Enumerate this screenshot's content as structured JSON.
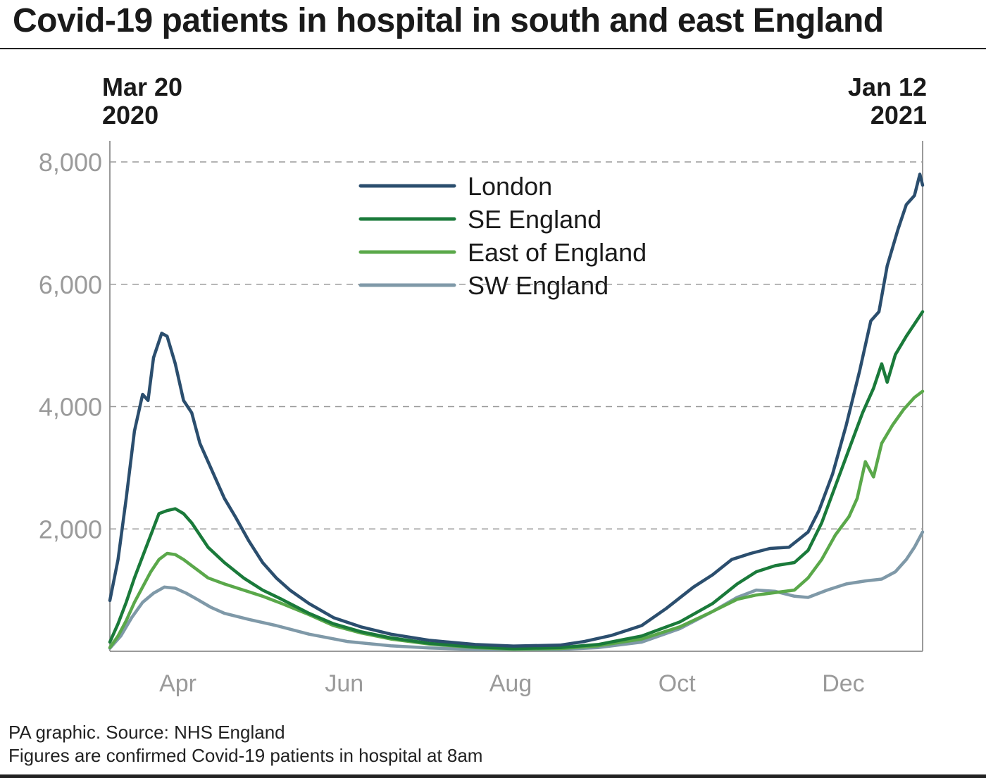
{
  "title": "Covid-19 patients in hospital in south and east England",
  "date_range": {
    "start_month_day": "Mar 20",
    "start_year": "2020",
    "end_month_day": "Jan 12",
    "end_year": "2021"
  },
  "footer": {
    "source": "PA graphic. Source: NHS England",
    "note": "Figures are confirmed Covid-19 patients in hospital at 8am"
  },
  "chart_data": {
    "type": "line",
    "x_range": [
      "2020-03-20",
      "2021-01-12"
    ],
    "ylim": [
      0,
      8000
    ],
    "yticks": [
      2000,
      4000,
      6000,
      8000
    ],
    "ytick_labels": [
      "2,000",
      "4,000",
      "6,000",
      "8,000"
    ],
    "xticks": [
      {
        "date": "2020-04-01",
        "label": "Apr"
      },
      {
        "date": "2020-06-01",
        "label": "Jun"
      },
      {
        "date": "2020-08-01",
        "label": "Aug"
      },
      {
        "date": "2020-10-01",
        "label": "Oct"
      },
      {
        "date": "2020-12-01",
        "label": "Dec"
      }
    ],
    "grid": "horizontal dashed",
    "legend_position": "top-center",
    "series": [
      {
        "name": "London",
        "color": "#2b4e6e",
        "points": [
          [
            "2020-03-20",
            830
          ],
          [
            "2020-03-23",
            1500
          ],
          [
            "2020-03-26",
            2500
          ],
          [
            "2020-03-29",
            3600
          ],
          [
            "2020-04-01",
            4200
          ],
          [
            "2020-04-03",
            4100
          ],
          [
            "2020-04-05",
            4800
          ],
          [
            "2020-04-08",
            5200
          ],
          [
            "2020-04-10",
            5150
          ],
          [
            "2020-04-13",
            4700
          ],
          [
            "2020-04-16",
            4100
          ],
          [
            "2020-04-19",
            3900
          ],
          [
            "2020-04-22",
            3400
          ],
          [
            "2020-04-25",
            3100
          ],
          [
            "2020-04-28",
            2800
          ],
          [
            "2020-05-01",
            2500
          ],
          [
            "2020-05-05",
            2200
          ],
          [
            "2020-05-10",
            1800
          ],
          [
            "2020-05-15",
            1450
          ],
          [
            "2020-05-20",
            1200
          ],
          [
            "2020-05-25",
            1000
          ],
          [
            "2020-06-01",
            780
          ],
          [
            "2020-06-10",
            550
          ],
          [
            "2020-06-20",
            400
          ],
          [
            "2020-07-01",
            280
          ],
          [
            "2020-07-15",
            180
          ],
          [
            "2020-08-01",
            110
          ],
          [
            "2020-08-15",
            85
          ],
          [
            "2020-09-01",
            100
          ],
          [
            "2020-09-10",
            160
          ],
          [
            "2020-09-20",
            260
          ],
          [
            "2020-10-01",
            420
          ],
          [
            "2020-10-10",
            700
          ],
          [
            "2020-10-20",
            1050
          ],
          [
            "2020-10-27",
            1250
          ],
          [
            "2020-11-03",
            1500
          ],
          [
            "2020-11-10",
            1600
          ],
          [
            "2020-11-17",
            1680
          ],
          [
            "2020-11-24",
            1700
          ],
          [
            "2020-12-01",
            1950
          ],
          [
            "2020-12-05",
            2300
          ],
          [
            "2020-12-10",
            2900
          ],
          [
            "2020-12-15",
            3700
          ],
          [
            "2020-12-20",
            4600
          ],
          [
            "2020-12-24",
            5400
          ],
          [
            "2020-12-27",
            5550
          ],
          [
            "2020-12-30",
            6300
          ],
          [
            "2021-01-03",
            6900
          ],
          [
            "2021-01-06",
            7300
          ],
          [
            "2021-01-09",
            7450
          ],
          [
            "2021-01-11",
            7800
          ],
          [
            "2021-01-12",
            7620
          ]
        ]
      },
      {
        "name": "SE England",
        "color": "#1a7a3a",
        "points": [
          [
            "2020-03-20",
            150
          ],
          [
            "2020-03-23",
            450
          ],
          [
            "2020-03-26",
            800
          ],
          [
            "2020-03-29",
            1200
          ],
          [
            "2020-04-01",
            1550
          ],
          [
            "2020-04-04",
            1900
          ],
          [
            "2020-04-07",
            2250
          ],
          [
            "2020-04-10",
            2300
          ],
          [
            "2020-04-13",
            2330
          ],
          [
            "2020-04-16",
            2250
          ],
          [
            "2020-04-19",
            2100
          ],
          [
            "2020-04-22",
            1900
          ],
          [
            "2020-04-25",
            1700
          ],
          [
            "2020-05-01",
            1450
          ],
          [
            "2020-05-08",
            1200
          ],
          [
            "2020-05-15",
            1000
          ],
          [
            "2020-05-22",
            850
          ],
          [
            "2020-06-01",
            620
          ],
          [
            "2020-06-10",
            450
          ],
          [
            "2020-06-20",
            320
          ],
          [
            "2020-07-01",
            220
          ],
          [
            "2020-07-15",
            130
          ],
          [
            "2020-08-01",
            70
          ],
          [
            "2020-08-15",
            45
          ],
          [
            "2020-09-01",
            60
          ],
          [
            "2020-09-15",
            110
          ],
          [
            "2020-10-01",
            250
          ],
          [
            "2020-10-15",
            480
          ],
          [
            "2020-10-27",
            780
          ],
          [
            "2020-11-05",
            1100
          ],
          [
            "2020-11-12",
            1300
          ],
          [
            "2020-11-19",
            1400
          ],
          [
            "2020-11-26",
            1450
          ],
          [
            "2020-12-01",
            1650
          ],
          [
            "2020-12-06",
            2100
          ],
          [
            "2020-12-11",
            2700
          ],
          [
            "2020-12-16",
            3300
          ],
          [
            "2020-12-21",
            3900
          ],
          [
            "2020-12-25",
            4300
          ],
          [
            "2020-12-28",
            4700
          ],
          [
            "2020-12-30",
            4400
          ],
          [
            "2021-01-02",
            4850
          ],
          [
            "2021-01-06",
            5150
          ],
          [
            "2021-01-09",
            5350
          ],
          [
            "2021-01-12",
            5550
          ]
        ]
      },
      {
        "name": "East of England",
        "color": "#5aa84a",
        "points": [
          [
            "2020-03-20",
            60
          ],
          [
            "2020-03-23",
            250
          ],
          [
            "2020-03-26",
            500
          ],
          [
            "2020-03-29",
            800
          ],
          [
            "2020-04-01",
            1050
          ],
          [
            "2020-04-04",
            1300
          ],
          [
            "2020-04-07",
            1500
          ],
          [
            "2020-04-10",
            1600
          ],
          [
            "2020-04-13",
            1580
          ],
          [
            "2020-04-16",
            1500
          ],
          [
            "2020-04-19",
            1400
          ],
          [
            "2020-04-22",
            1300
          ],
          [
            "2020-04-25",
            1200
          ],
          [
            "2020-05-01",
            1100
          ],
          [
            "2020-05-08",
            1000
          ],
          [
            "2020-05-15",
            900
          ],
          [
            "2020-05-22",
            780
          ],
          [
            "2020-06-01",
            600
          ],
          [
            "2020-06-10",
            420
          ],
          [
            "2020-06-20",
            300
          ],
          [
            "2020-07-01",
            200
          ],
          [
            "2020-07-15",
            120
          ],
          [
            "2020-08-01",
            60
          ],
          [
            "2020-08-15",
            35
          ],
          [
            "2020-09-01",
            45
          ],
          [
            "2020-09-15",
            90
          ],
          [
            "2020-10-01",
            200
          ],
          [
            "2020-10-15",
            400
          ],
          [
            "2020-10-27",
            650
          ],
          [
            "2020-11-05",
            850
          ],
          [
            "2020-11-12",
            920
          ],
          [
            "2020-11-19",
            960
          ],
          [
            "2020-11-26",
            1000
          ],
          [
            "2020-12-01",
            1200
          ],
          [
            "2020-12-06",
            1500
          ],
          [
            "2020-12-11",
            1900
          ],
          [
            "2020-12-16",
            2200
          ],
          [
            "2020-12-19",
            2500
          ],
          [
            "2020-12-22",
            3100
          ],
          [
            "2020-12-25",
            2850
          ],
          [
            "2020-12-28",
            3400
          ],
          [
            "2021-01-01",
            3700
          ],
          [
            "2021-01-05",
            3950
          ],
          [
            "2021-01-09",
            4150
          ],
          [
            "2021-01-12",
            4250
          ]
        ]
      },
      {
        "name": "SW England",
        "color": "#7f99a8",
        "points": [
          [
            "2020-03-20",
            50
          ],
          [
            "2020-03-24",
            250
          ],
          [
            "2020-03-28",
            550
          ],
          [
            "2020-04-01",
            800
          ],
          [
            "2020-04-05",
            950
          ],
          [
            "2020-04-09",
            1050
          ],
          [
            "2020-04-13",
            1030
          ],
          [
            "2020-04-17",
            950
          ],
          [
            "2020-04-21",
            850
          ],
          [
            "2020-04-26",
            720
          ],
          [
            "2020-05-01",
            620
          ],
          [
            "2020-05-10",
            520
          ],
          [
            "2020-05-20",
            420
          ],
          [
            "2020-06-01",
            280
          ],
          [
            "2020-06-15",
            160
          ],
          [
            "2020-07-01",
            90
          ],
          [
            "2020-07-15",
            55
          ],
          [
            "2020-08-01",
            30
          ],
          [
            "2020-08-15",
            25
          ],
          [
            "2020-09-01",
            30
          ],
          [
            "2020-09-15",
            60
          ],
          [
            "2020-10-01",
            150
          ],
          [
            "2020-10-15",
            370
          ],
          [
            "2020-10-27",
            650
          ],
          [
            "2020-11-05",
            880
          ],
          [
            "2020-11-12",
            1000
          ],
          [
            "2020-11-19",
            980
          ],
          [
            "2020-11-26",
            900
          ],
          [
            "2020-12-01",
            880
          ],
          [
            "2020-12-08",
            1000
          ],
          [
            "2020-12-15",
            1100
          ],
          [
            "2020-12-22",
            1150
          ],
          [
            "2020-12-28",
            1180
          ],
          [
            "2021-01-02",
            1300
          ],
          [
            "2021-01-06",
            1500
          ],
          [
            "2021-01-09",
            1700
          ],
          [
            "2021-01-12",
            1950
          ]
        ]
      }
    ]
  }
}
